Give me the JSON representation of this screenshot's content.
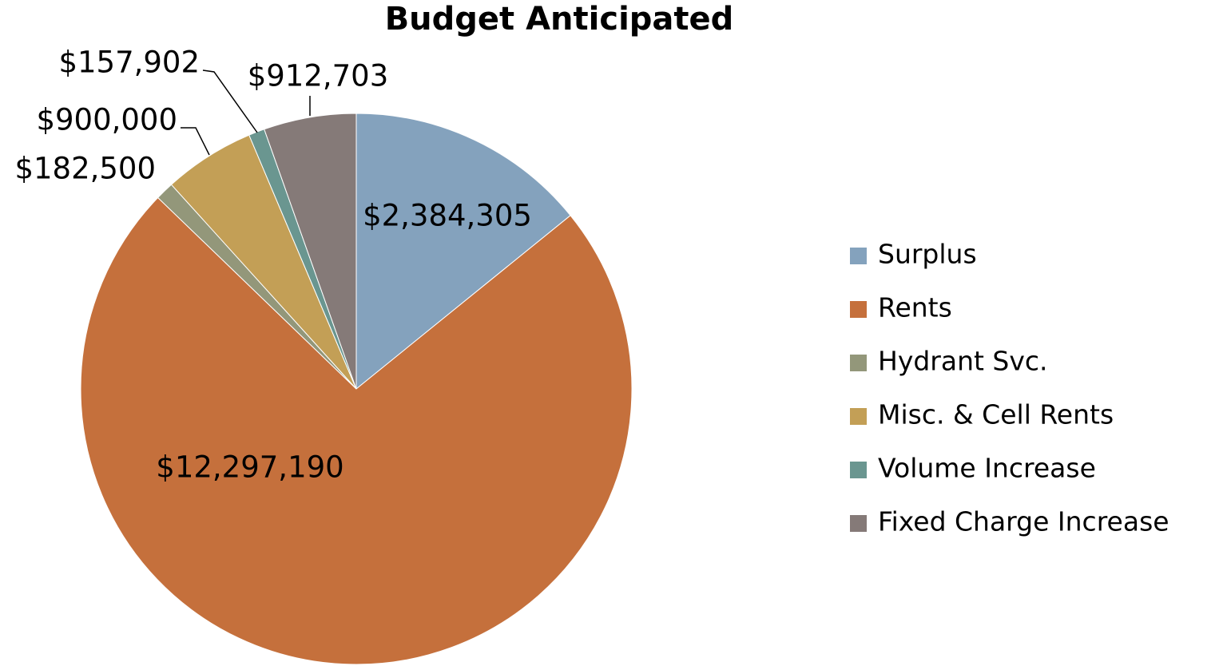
{
  "chart_data": {
    "type": "pie",
    "title": "Budget Anticipated",
    "categories": [
      "Surplus",
      "Rents",
      "Hydrant Svc.",
      "Misc. & Cell Rents",
      "Volume Increase",
      "Fixed Charge Increase"
    ],
    "values": [
      2384305,
      12297190,
      182500,
      900000,
      157902,
      912703
    ],
    "value_labels": [
      "$2,384,305",
      "$12,297,190",
      "$182,500",
      "$900,000",
      "$157,902",
      "$912,703"
    ],
    "colors": [
      "#84a2bd",
      "#c5703c",
      "#93977a",
      "#c39f56",
      "#6a9690",
      "#857a78"
    ],
    "legend": "right"
  }
}
